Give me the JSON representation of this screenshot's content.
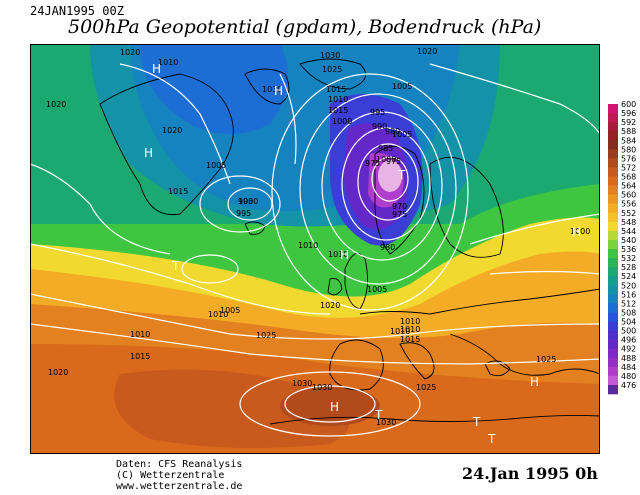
{
  "header": {
    "date_code": "24JAN1995 00Z",
    "title": "500hPa Geopotential (gpdam), Bodendruck (hPa)"
  },
  "footer": {
    "credits": [
      "Daten: CFS Reanalysis",
      "(C) Wetterzentrale",
      "www.wetterzentrale.de"
    ],
    "date": "24.Jan 1995  0h"
  },
  "colorbar": {
    "ticks": [
      "600",
      "596",
      "592",
      "588",
      "584",
      "580",
      "576",
      "572",
      "568",
      "564",
      "560",
      "556",
      "552",
      "548",
      "544",
      "540",
      "536",
      "532",
      "528",
      "524",
      "520",
      "516",
      "512",
      "508",
      "504",
      "500",
      "496",
      "492",
      "488",
      "484",
      "480",
      "476"
    ],
    "colors": [
      "#d2156f",
      "#c01a54",
      "#a8193c",
      "#962124",
      "#852e1f",
      "#9b3a1d",
      "#b34a1c",
      "#c75a1c",
      "#d96a1c",
      "#e3801f",
      "#ee9623",
      "#f4ab26",
      "#f6c12a",
      "#f2d92f",
      "#b6d935",
      "#79d33a",
      "#3fc640",
      "#28b457",
      "#1ba871",
      "#169e8c",
      "#1492a7",
      "#1583c0",
      "#1d6ed4",
      "#2955dc",
      "#3b3ed6",
      "#4e2ecd",
      "#6428c8",
      "#7d2ac8",
      "#9530c6",
      "#b03ecc",
      "#c65ad6",
      "#5a2a9a"
    ]
  },
  "map": {
    "isobar_labels": [
      "1020",
      "1010",
      "1030",
      "1025",
      "1020",
      "1005",
      "1030",
      "1015",
      "1010",
      "1015",
      "1020",
      "1020",
      "1000",
      "1005",
      "1005",
      "1000",
      "995",
      "1015",
      "995",
      "1010",
      "1010",
      "975",
      "980",
      "985",
      "990",
      "995",
      "1000",
      "975",
      "970",
      "975",
      "980",
      "1005",
      "1020",
      "1010",
      "1010",
      "1015",
      "1005",
      "1010",
      "1010",
      "1015",
      "1025",
      "1020",
      "1030",
      "1030",
      "1030",
      "1025",
      "1025",
      "1010",
      "1000"
    ],
    "symbols": [
      "H",
      "H",
      "H",
      "H",
      "T",
      "T",
      "T",
      "T",
      "T",
      "H",
      "H",
      "H"
    ],
    "colors": {
      "sea_boundary": "#000000",
      "isobar": "#ffffff",
      "background": "#ffffff"
    }
  }
}
